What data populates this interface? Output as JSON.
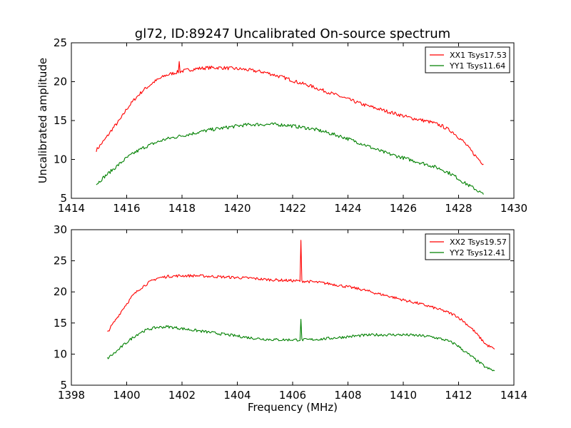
{
  "title": "gl72, ID:89247 Uncalibrated On-source spectrum",
  "colors": {
    "red": "#ff0000",
    "green": "#008000"
  },
  "chart_data": [
    {
      "type": "line",
      "ylabel": "Uncalibrated amplitude",
      "xlabel": "",
      "xlim": [
        1414,
        1430
      ],
      "ylim": [
        5,
        25
      ],
      "xticks": [
        "1414",
        "1416",
        "1418",
        "1420",
        "1422",
        "1424",
        "1426",
        "1428",
        "1430"
      ],
      "yticks": [
        "5",
        "10",
        "15",
        "20",
        "25"
      ],
      "legend_position": "top-right",
      "series": [
        {
          "name": "XX1 Tsys17.53",
          "color": "#ff0000",
          "x": [
            1414.9,
            1415.2,
            1415.5,
            1415.8,
            1416.0,
            1416.3,
            1416.6,
            1417.0,
            1417.4,
            1417.8,
            1418.2,
            1418.6,
            1419.0,
            1419.4,
            1419.8,
            1420.2,
            1420.6,
            1421.0,
            1421.4,
            1421.8,
            1422.2,
            1422.6,
            1423.0,
            1423.4,
            1423.8,
            1424.2,
            1424.6,
            1425.0,
            1425.4,
            1425.8,
            1426.2,
            1426.6,
            1427.0,
            1427.4,
            1427.8,
            1428.2,
            1428.6,
            1428.9
          ],
          "y": [
            11.2,
            12.5,
            14.0,
            15.3,
            16.5,
            17.8,
            18.9,
            20.0,
            20.8,
            21.2,
            21.5,
            21.7,
            21.8,
            21.8,
            21.7,
            21.6,
            21.4,
            21.2,
            20.8,
            20.4,
            19.9,
            19.5,
            19.0,
            18.5,
            18.0,
            17.5,
            17.0,
            16.6,
            16.2,
            15.8,
            15.4,
            15.1,
            14.8,
            14.3,
            13.5,
            12.2,
            10.5,
            9.4
          ],
          "spikes": [
            {
              "x": 1417.9,
              "y": 22.6
            }
          ]
        },
        {
          "name": "YY1 Tsys11.64",
          "color": "#008000",
          "x": [
            1414.9,
            1415.2,
            1415.5,
            1415.8,
            1416.0,
            1416.3,
            1416.6,
            1417.0,
            1417.4,
            1417.8,
            1418.2,
            1418.6,
            1419.0,
            1419.4,
            1419.8,
            1420.2,
            1420.6,
            1421.0,
            1421.4,
            1421.8,
            1422.2,
            1422.6,
            1423.0,
            1423.4,
            1423.8,
            1424.2,
            1424.6,
            1425.0,
            1425.4,
            1425.8,
            1426.2,
            1426.6,
            1427.0,
            1427.4,
            1427.8,
            1428.2,
            1428.6,
            1428.9
          ],
          "y": [
            6.8,
            7.8,
            8.7,
            9.6,
            10.2,
            10.9,
            11.5,
            12.1,
            12.6,
            12.9,
            13.2,
            13.5,
            13.8,
            14.0,
            14.2,
            14.4,
            14.5,
            14.5,
            14.5,
            14.4,
            14.2,
            14.0,
            13.7,
            13.3,
            12.9,
            12.4,
            11.9,
            11.3,
            10.8,
            10.4,
            10.0,
            9.6,
            9.2,
            8.7,
            8.0,
            7.0,
            6.2,
            5.5
          ],
          "spikes": [
            {
              "x": 1428.3,
              "y": 6.9
            }
          ]
        }
      ]
    },
    {
      "type": "line",
      "ylabel": "",
      "xlabel": "Frequency (MHz)",
      "xlim": [
        1398,
        1414
      ],
      "ylim": [
        5,
        30
      ],
      "xticks": [
        "1398",
        "1400",
        "1402",
        "1404",
        "1406",
        "1408",
        "1410",
        "1412",
        "1414"
      ],
      "yticks": [
        "5",
        "10",
        "15",
        "20",
        "25",
        "30"
      ],
      "legend_position": "top-right",
      "series": [
        {
          "name": "XX2 Tsys19.57",
          "color": "#ff0000",
          "x": [
            1399.3,
            1399.6,
            1399.9,
            1400.2,
            1400.5,
            1400.8,
            1401.1,
            1401.5,
            1402.0,
            1402.5,
            1403.0,
            1403.5,
            1404.0,
            1404.5,
            1405.0,
            1405.5,
            1406.0,
            1406.5,
            1407.0,
            1407.5,
            1408.0,
            1408.5,
            1409.0,
            1409.5,
            1410.0,
            1410.5,
            1411.0,
            1411.5,
            1411.9,
            1412.2,
            1412.5,
            1412.8,
            1413.0,
            1413.3
          ],
          "y": [
            13.5,
            15.5,
            17.5,
            19.3,
            20.6,
            21.5,
            22.2,
            22.5,
            22.6,
            22.6,
            22.5,
            22.4,
            22.3,
            22.2,
            22.0,
            21.9,
            21.8,
            21.7,
            21.5,
            21.2,
            20.8,
            20.4,
            19.8,
            19.3,
            18.7,
            18.2,
            17.6,
            16.9,
            16.2,
            15.2,
            14.0,
            12.5,
            11.5,
            10.8
          ],
          "spikes": [
            {
              "x": 1406.3,
              "y": 28.3
            }
          ]
        },
        {
          "name": "YY2 Tsys12.41",
          "color": "#008000",
          "x": [
            1399.3,
            1399.6,
            1399.9,
            1400.2,
            1400.5,
            1400.8,
            1401.1,
            1401.5,
            1402.0,
            1402.5,
            1403.0,
            1403.5,
            1404.0,
            1404.5,
            1405.0,
            1405.5,
            1406.0,
            1406.5,
            1407.0,
            1407.5,
            1408.0,
            1408.5,
            1409.0,
            1409.5,
            1410.0,
            1410.5,
            1411.0,
            1411.5,
            1411.9,
            1412.2,
            1412.5,
            1412.8,
            1413.0,
            1413.3
          ],
          "y": [
            9.3,
            10.3,
            11.5,
            12.6,
            13.5,
            14.0,
            14.3,
            14.4,
            14.1,
            13.8,
            13.5,
            13.2,
            12.9,
            12.6,
            12.4,
            12.3,
            12.3,
            12.3,
            12.4,
            12.6,
            12.8,
            13.0,
            13.1,
            13.1,
            13.1,
            13.0,
            12.8,
            12.3,
            11.6,
            10.5,
            9.5,
            8.5,
            7.8,
            7.3
          ],
          "spikes": [
            {
              "x": 1406.3,
              "y": 15.6
            }
          ]
        }
      ]
    }
  ]
}
